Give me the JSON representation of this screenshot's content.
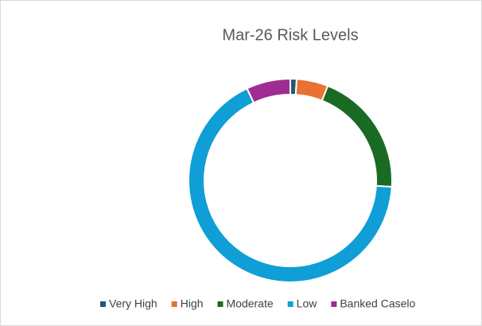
{
  "chart_data": {
    "type": "donut",
    "title": "Mar-26 Risk Levels",
    "categories": [
      "Very High",
      "High",
      "Moderate",
      "Low",
      "Banked Caselo"
    ],
    "values": [
      1,
      5,
      20,
      67,
      7
    ],
    "colors": [
      "#1d5b79",
      "#e97132",
      "#196b24",
      "#0f9ed5",
      "#a02b93"
    ],
    "legend": "bottom"
  }
}
